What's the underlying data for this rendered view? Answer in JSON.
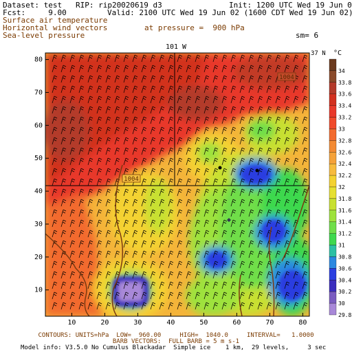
{
  "header": {
    "dataset": "Dataset: test   RIP: rip20020619 d3",
    "init": "Init: 1200 UTC Wed 19 Jun 02",
    "fcst": "Fcst:     9.00",
    "valid": "Valid: 2100 UTC Wed 19 Jun 02 (1600 CDT Wed 19 Jun 02)",
    "field1": "Surface air temperature",
    "field2": "Horizontal wind vectors",
    "field3": "Sea-level pressure",
    "pressure": "at pressure =  900 hPa",
    "sm": "sm= 6"
  },
  "map": {
    "top_label_lon": "101 W",
    "right_label_lat": "37 N",
    "contour_label_a": "1004",
    "contour_label_b": "1004",
    "x_ticks": [
      "10",
      "20",
      "30",
      "40",
      "50",
      "60",
      "70",
      "80"
    ],
    "y_ticks": [
      "10",
      "20",
      "30",
      "40",
      "50",
      "60",
      "70",
      "80"
    ]
  },
  "colorbar": {
    "unit": "°C",
    "labels": [
      "34",
      "33.8",
      "33.6",
      "33.4",
      "33.2",
      "33",
      "32.8",
      "32.6",
      "32.4",
      "32.2",
      "32",
      "31.8",
      "31.6",
      "31.4",
      "31.2",
      "31",
      "30.8",
      "30.6",
      "30.4",
      "30.2",
      "30",
      "29.8"
    ],
    "colors": [
      "#6b3a1e",
      "#8a4a2a",
      "#b33a2a",
      "#d2301f",
      "#e8392a",
      "#f04a2a",
      "#f26a2e",
      "#f38a33",
      "#f5a23a",
      "#f7bb3e",
      "#f4d230",
      "#e6e030",
      "#c8e030",
      "#9ee23c",
      "#6fde4a",
      "#3ed84e",
      "#2cc0a4",
      "#2b88e0",
      "#2a3ee0",
      "#3a2dbd",
      "#7a5cc0",
      "#a888d8"
    ]
  },
  "footer": {
    "line1": "CONTOURS: UNITS=hPa  LOW=  960.00     HIGH=  1040.0     INTERVAL=   1.0000",
    "line2": "BARB VECTORS:  FULL BARB = 5 m s-1",
    "line3": "Model info: V3.5.0 No Cumulus Blackadar  Simple ice    1 km,  29 levels,     3 sec"
  }
}
